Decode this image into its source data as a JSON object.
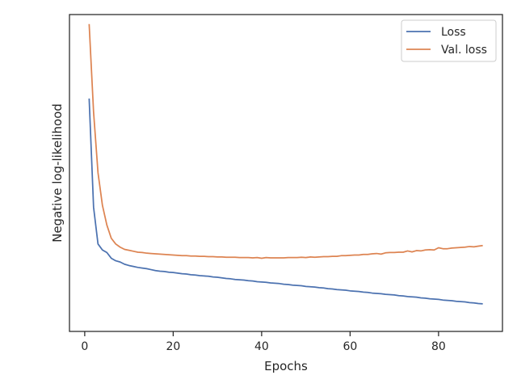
{
  "chart_data": {
    "type": "line",
    "title": "",
    "xlabel": "Epochs",
    "ylabel": "Negative log-likelihood",
    "xlim": [
      -3.45,
      94.45
    ],
    "ylim": [
      0.0,
      1.0
    ],
    "x_ticks": [
      0,
      20,
      40,
      60,
      80
    ],
    "y_ticks": [],
    "grid": false,
    "legend_position": "top-right",
    "series": [
      {
        "name": "Loss",
        "color": "#4c72b0",
        "x": [
          1,
          2,
          3,
          4,
          5,
          6,
          7,
          8,
          9,
          10,
          11,
          12,
          13,
          14,
          15,
          16,
          17,
          18,
          19,
          20,
          21,
          22,
          23,
          24,
          25,
          26,
          27,
          28,
          29,
          30,
          31,
          32,
          33,
          34,
          35,
          36,
          37,
          38,
          39,
          40,
          41,
          42,
          43,
          44,
          45,
          46,
          47,
          48,
          49,
          50,
          51,
          52,
          53,
          54,
          55,
          56,
          57,
          58,
          59,
          60,
          61,
          62,
          63,
          64,
          65,
          66,
          67,
          68,
          69,
          70,
          71,
          72,
          73,
          74,
          75,
          76,
          77,
          78,
          79,
          80,
          81,
          82,
          83,
          84,
          85,
          86,
          87,
          88,
          89,
          90
        ],
        "values": [
          0.735,
          0.392,
          0.276,
          0.257,
          0.249,
          0.231,
          0.223,
          0.219,
          0.212,
          0.208,
          0.205,
          0.202,
          0.2,
          0.198,
          0.195,
          0.192,
          0.19,
          0.189,
          0.187,
          0.186,
          0.184,
          0.182,
          0.181,
          0.179,
          0.178,
          0.176,
          0.175,
          0.174,
          0.172,
          0.171,
          0.169,
          0.167,
          0.166,
          0.164,
          0.163,
          0.162,
          0.16,
          0.159,
          0.157,
          0.156,
          0.155,
          0.153,
          0.152,
          0.151,
          0.149,
          0.148,
          0.146,
          0.145,
          0.144,
          0.142,
          0.141,
          0.14,
          0.138,
          0.137,
          0.135,
          0.134,
          0.132,
          0.131,
          0.13,
          0.128,
          0.127,
          0.126,
          0.124,
          0.123,
          0.121,
          0.12,
          0.119,
          0.117,
          0.116,
          0.115,
          0.113,
          0.112,
          0.11,
          0.109,
          0.108,
          0.106,
          0.105,
          0.103,
          0.102,
          0.101,
          0.099,
          0.098,
          0.097,
          0.095,
          0.094,
          0.093,
          0.091,
          0.09,
          0.088,
          0.087
        ]
      },
      {
        "name": "Val. loss",
        "color": "#dd8452",
        "x": [
          1,
          2,
          3,
          4,
          5,
          6,
          7,
          8,
          9,
          10,
          11,
          12,
          13,
          14,
          15,
          16,
          17,
          18,
          19,
          20,
          21,
          22,
          23,
          24,
          25,
          26,
          27,
          28,
          29,
          30,
          31,
          32,
          33,
          34,
          35,
          36,
          37,
          38,
          39,
          40,
          41,
          42,
          43,
          44,
          45,
          46,
          47,
          48,
          49,
          50,
          51,
          52,
          53,
          54,
          55,
          56,
          57,
          58,
          59,
          60,
          61,
          62,
          63,
          64,
          65,
          66,
          67,
          68,
          69,
          70,
          71,
          72,
          73,
          74,
          75,
          76,
          77,
          78,
          79,
          80,
          81,
          82,
          83,
          84,
          85,
          86,
          87,
          88,
          89,
          90
        ],
        "values": [
          0.97,
          0.692,
          0.501,
          0.398,
          0.336,
          0.294,
          0.276,
          0.266,
          0.259,
          0.256,
          0.253,
          0.25,
          0.249,
          0.247,
          0.246,
          0.245,
          0.244,
          0.243,
          0.242,
          0.241,
          0.24,
          0.239,
          0.239,
          0.238,
          0.238,
          0.237,
          0.237,
          0.236,
          0.236,
          0.235,
          0.235,
          0.234,
          0.234,
          0.234,
          0.233,
          0.233,
          0.233,
          0.232,
          0.233,
          0.231,
          0.233,
          0.232,
          0.232,
          0.232,
          0.232,
          0.233,
          0.233,
          0.233,
          0.234,
          0.233,
          0.235,
          0.234,
          0.235,
          0.236,
          0.236,
          0.237,
          0.237,
          0.239,
          0.239,
          0.24,
          0.241,
          0.241,
          0.243,
          0.243,
          0.245,
          0.246,
          0.244,
          0.248,
          0.249,
          0.249,
          0.25,
          0.25,
          0.254,
          0.251,
          0.255,
          0.254,
          0.257,
          0.258,
          0.257,
          0.264,
          0.261,
          0.261,
          0.263,
          0.264,
          0.265,
          0.266,
          0.268,
          0.267,
          0.269,
          0.271
        ]
      }
    ]
  }
}
